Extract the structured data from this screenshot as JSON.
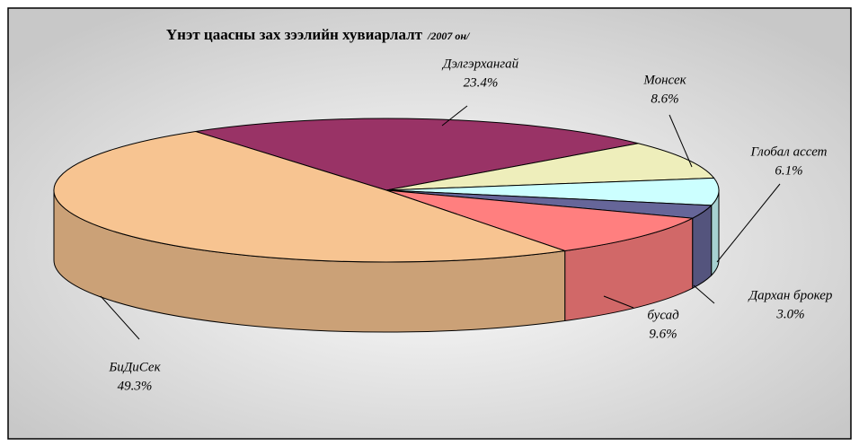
{
  "chart_data": {
    "type": "pie",
    "title": "Үнэт цаасны зах зээлийн хувиарлалт",
    "subtitle": "/2007 он/",
    "categories": [
      "Дэлгэрхангай",
      "Монсек",
      "Глобал ассет",
      "Дархан брокер",
      "бусад",
      "БиДиСек"
    ],
    "values": [
      23.4,
      8.6,
      6.1,
      3.0,
      9.6,
      49.3
    ],
    "value_labels": [
      "23.4%",
      "8.6%",
      "6.1%",
      "3.0%",
      "9.6%",
      "49.3%"
    ],
    "colors": [
      "#993366",
      "#eeeebb",
      "#ccffff",
      "#666699",
      "#ff7f7f",
      "#f7c491"
    ]
  }
}
